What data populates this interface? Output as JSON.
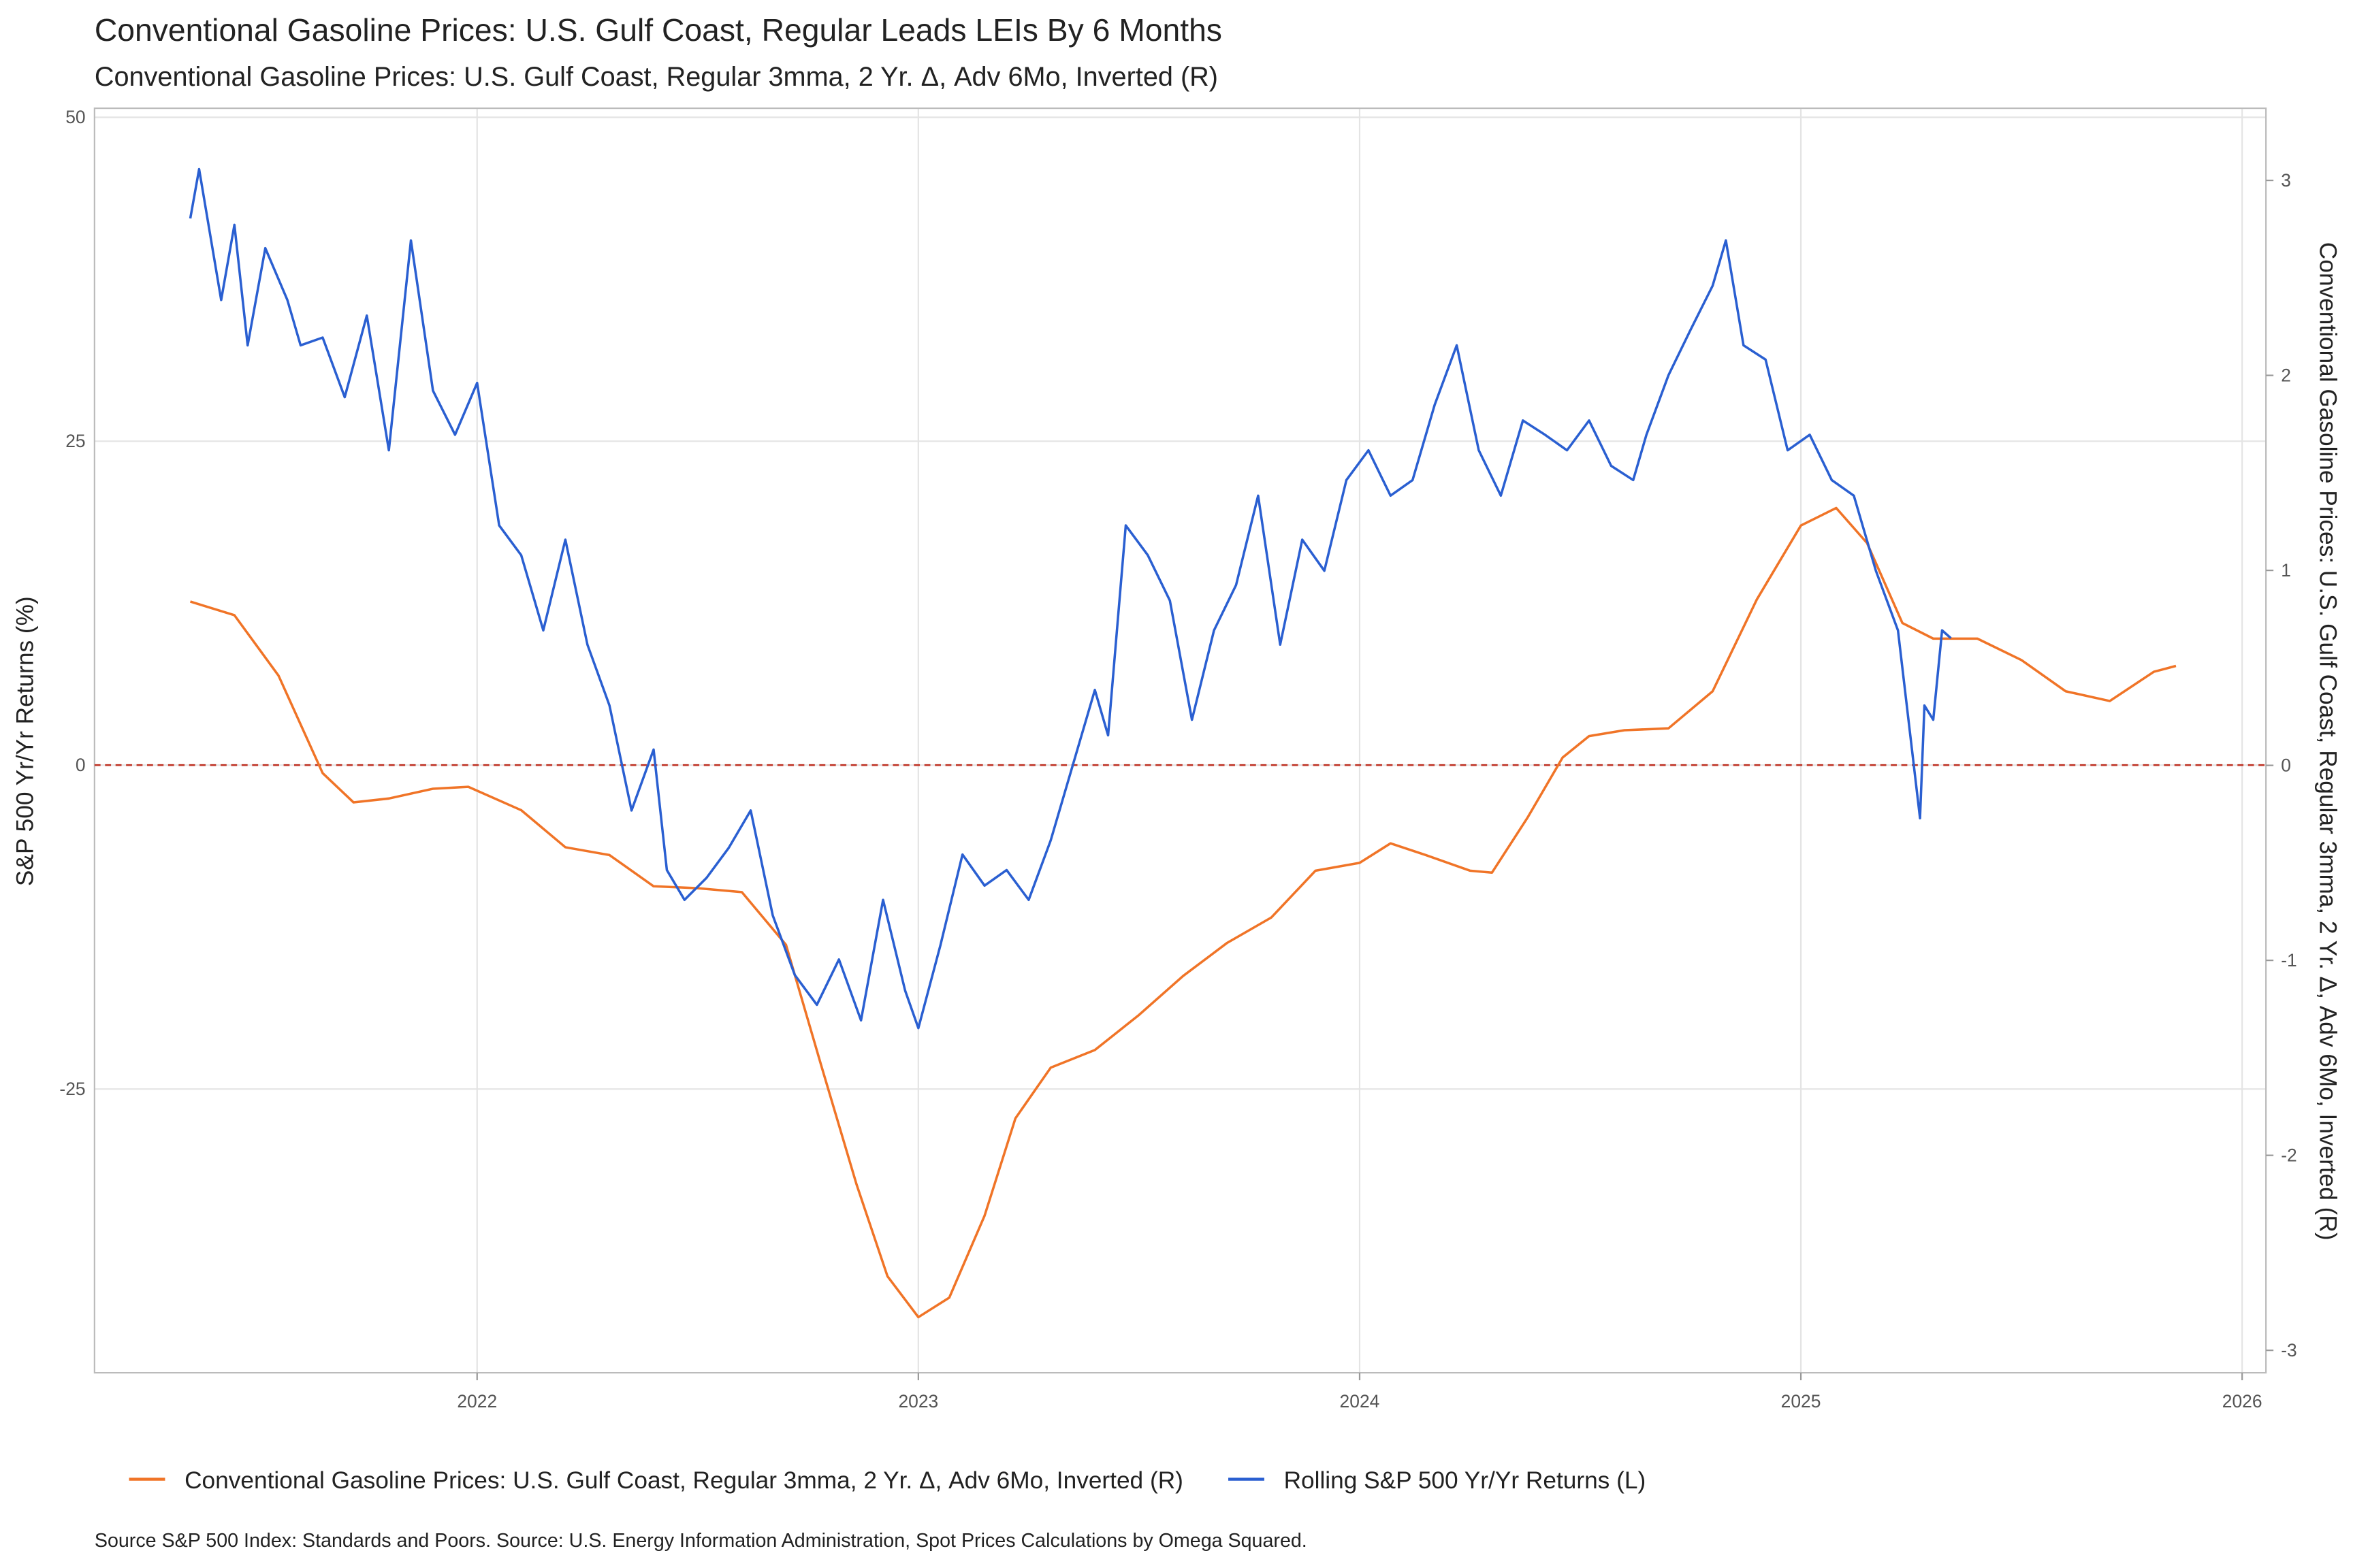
{
  "chart_data": {
    "type": "line",
    "title": "Conventional Gasoline Prices: U.S. Gulf Coast, Regular  Leads LEIs By  6  Months",
    "subtitle": "Conventional Gasoline Prices: U.S. Gulf Coast, Regular 3mma, 2 Yr. Δ, Adv 6Mo, Inverted (R)",
    "y_label": "S&P 500 Yr/Yr Returns (%)",
    "y2_label": "Conventional Gasoline Prices: U.S. Gulf Coast, Regular 3mma, 2 Yr. Δ, Adv 6Mo, Inverted (R)",
    "source": "Source S&P 500 Index: Standards and Poors. Source: U.S. Energy Information Administration, Spot Prices Calculations by Omega Squared.",
    "xlim": [
      2021.133,
      2026.054
    ],
    "xticks": [
      2022,
      2023,
      2024,
      2025,
      2026
    ],
    "ylim": [
      -46.9,
      50.7
    ],
    "yticks": [
      -25,
      0,
      25,
      50
    ],
    "y2lim": [
      -3.115,
      3.37
    ],
    "y2ticks": [
      -3,
      -2,
      -1,
      0,
      1,
      2,
      3
    ],
    "grid": true,
    "legend": "bottom",
    "reference_line": {
      "value": 0,
      "color": "#c0392b"
    },
    "series": [
      {
        "name": "Conventional Gasoline Prices: U.S. Gulf Coast, Regular 3mma, 2 Yr. Δ, Adv 6Mo, Inverted (R)",
        "color": "#f07427",
        "axis": "y2",
        "x": [
          2021.35,
          2021.45,
          2021.55,
          2021.65,
          2021.72,
          2021.8,
          2021.9,
          2021.98,
          2022.1,
          2022.2,
          2022.3,
          2022.4,
          2022.5,
          2022.6,
          2022.7,
          2022.78,
          2022.86,
          2022.93,
          2023.0,
          2023.07,
          2023.15,
          2023.22,
          2023.3,
          2023.4,
          2023.5,
          2023.6,
          2023.7,
          2023.8,
          2023.9,
          2024.0,
          2024.07,
          2024.15,
          2024.25,
          2024.3,
          2024.38,
          2024.46,
          2024.52,
          2024.6,
          2024.7,
          2024.8,
          2024.9,
          2025.0,
          2025.08,
          2025.15,
          2025.23,
          2025.3,
          2025.4,
          2025.5,
          2025.6,
          2025.7,
          2025.8,
          2025.85
        ],
        "values": [
          0.84,
          0.77,
          0.46,
          -0.04,
          -0.19,
          -0.17,
          -0.12,
          -0.11,
          -0.23,
          -0.42,
          -0.46,
          -0.62,
          -0.63,
          -0.65,
          -0.92,
          -1.54,
          -2.15,
          -2.62,
          -2.83,
          -2.73,
          -2.31,
          -1.81,
          -1.55,
          -1.46,
          -1.28,
          -1.08,
          -0.91,
          -0.78,
          -0.54,
          -0.5,
          -0.4,
          -0.46,
          -0.54,
          -0.55,
          -0.27,
          0.04,
          0.15,
          0.18,
          0.19,
          0.38,
          0.85,
          1.23,
          1.32,
          1.14,
          0.73,
          0.65,
          0.65,
          0.54,
          0.38,
          0.33,
          0.48,
          0.51
        ]
      },
      {
        "name": "Rolling S&P 500 Yr/Yr Returns (L)",
        "color": "#2a5fd1",
        "x": [
          2021.35,
          2021.37,
          2021.42,
          2021.45,
          2021.48,
          2021.52,
          2021.57,
          2021.6,
          2021.65,
          2021.7,
          2021.75,
          2021.8,
          2021.85,
          2021.9,
          2021.95,
          2022.0,
          2022.05,
          2022.1,
          2022.15,
          2022.2,
          2022.25,
          2022.3,
          2022.35,
          2022.4,
          2022.43,
          2022.47,
          2022.52,
          2022.57,
          2022.62,
          2022.67,
          2022.72,
          2022.77,
          2022.82,
          2022.87,
          2022.92,
          2022.97,
          2023.0,
          2023.05,
          2023.1,
          2023.15,
          2023.2,
          2023.25,
          2023.3,
          2023.35,
          2023.4,
          2023.43,
          2023.47,
          2023.52,
          2023.57,
          2023.62,
          2023.67,
          2023.72,
          2023.77,
          2023.82,
          2023.87,
          2023.92,
          2023.97,
          2024.02,
          2024.07,
          2024.12,
          2024.17,
          2024.22,
          2024.27,
          2024.32,
          2024.37,
          2024.42,
          2024.47,
          2024.52,
          2024.57,
          2024.62,
          2024.65,
          2024.7,
          2024.75,
          2024.8,
          2024.83,
          2024.87,
          2024.92,
          2024.97,
          2025.02,
          2025.07,
          2025.12,
          2025.17,
          2025.22,
          2025.27,
          2025.28,
          2025.3,
          2025.32,
          2025.34
        ],
        "values": [
          42.2,
          46,
          35.9,
          41.7,
          32.4,
          39.9,
          35.9,
          32.4,
          33,
          28.4,
          34.7,
          24.3,
          40.5,
          28.9,
          25.5,
          29.5,
          18.5,
          16.2,
          10.4,
          17.4,
          9.3,
          4.6,
          -3.5,
          1.2,
          -8.1,
          -10.4,
          -8.7,
          -6.4,
          -3.5,
          -11.6,
          -16.2,
          -18.5,
          -15,
          -19.7,
          -10.4,
          -17.4,
          -20.3,
          -13.9,
          -6.9,
          -9.3,
          -8.1,
          -10.4,
          -5.8,
          0,
          5.8,
          2.3,
          18.5,
          16.2,
          12.7,
          3.5,
          10.4,
          13.9,
          20.8,
          9.3,
          17.4,
          15,
          22,
          24.3,
          20.8,
          22,
          27.8,
          32.4,
          24.3,
          20.8,
          26.6,
          25.5,
          24.3,
          26.6,
          23.1,
          22,
          25.5,
          30.1,
          33.6,
          37,
          40.5,
          32.4,
          31.3,
          24.3,
          25.5,
          22,
          20.8,
          15,
          10.4,
          -4.1,
          4.6,
          3.5,
          10.4,
          9.8
        ]
      }
    ]
  }
}
